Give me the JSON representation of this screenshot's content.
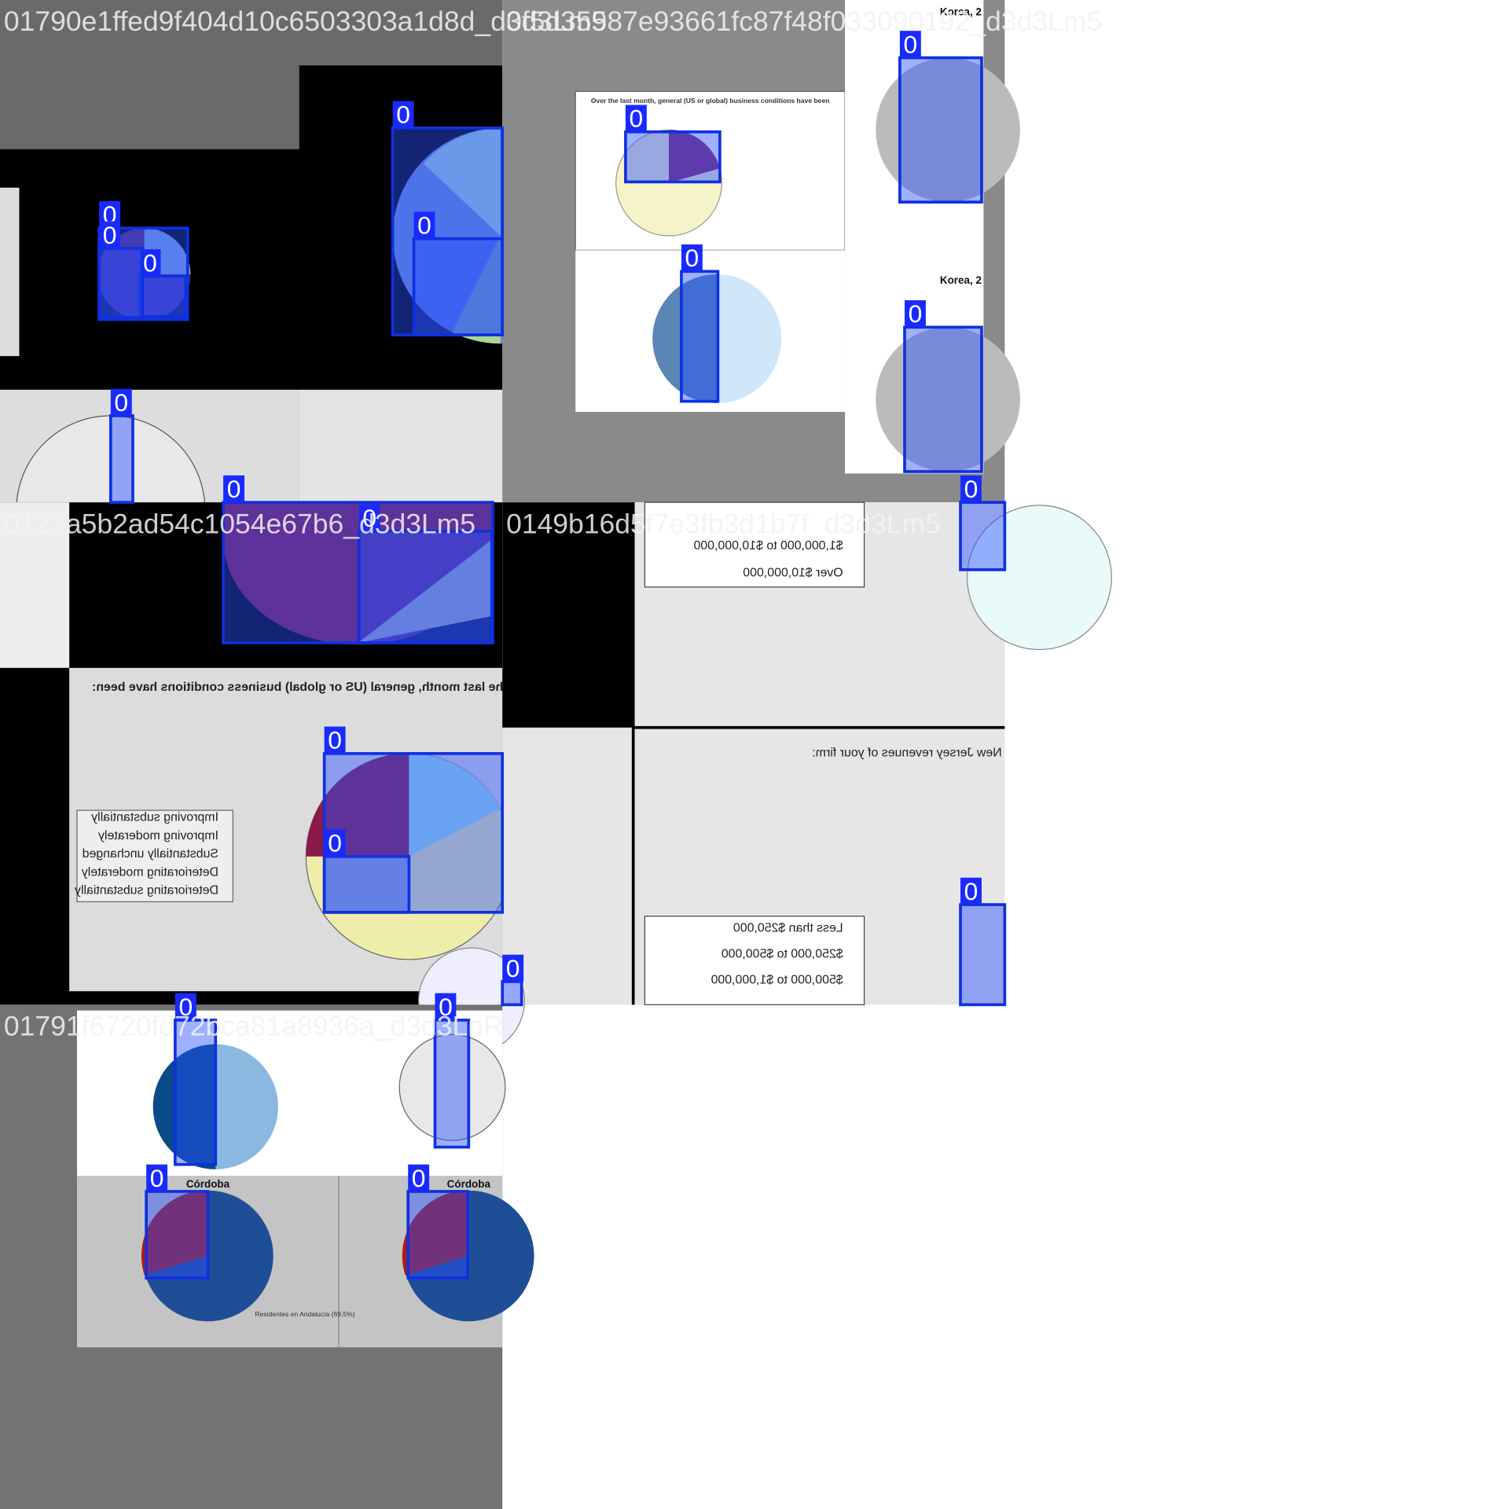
{
  "tiles": [
    {
      "filename": "01790e1ffed9f404d10c6503303a1d8d_d3d3Lm5",
      "boxes": [
        "0",
        "0",
        "0",
        "0",
        "0",
        "0"
      ]
    },
    {
      "filename": "0f5d35987e93661fc87f48f033090192_d3d3Lm5",
      "boxes": [
        "0",
        "0",
        "0",
        "0"
      ],
      "texts": [
        "Over the last month, general (US or global) business conditions have been",
        "Korea, 2",
        "Korea, 2"
      ]
    },
    {
      "filename": "0123a5b2ad54c1054e67b6_d3d3Lm5",
      "boxes": [
        "0",
        "0",
        "0",
        "0"
      ],
      "texts": [
        "Over the last month, general (US or global) business conditions have been:",
        "Improving substantially",
        "Improving moderately",
        "Substantially unchanged",
        "Deteriorating moderately",
        "Deteriorating substantially"
      ]
    },
    {
      "filename": "0149b16d5f7e3fb3d1b7f_d3d3Lm5",
      "boxes": [
        "0",
        "0",
        "0"
      ],
      "texts": [
        "New Jersey revenues of your firm:",
        "Less than $250,000",
        "$250,000 to $500,000",
        "$500,000 to $1,000,000",
        "$1,000,000 to $10,000,000",
        "Over $10,000,000"
      ]
    },
    {
      "filename": "01791f6720fd72bca81a8936a_d3d3LnR",
      "boxes": [
        "0",
        "0",
        "0",
        "0"
      ],
      "texts": [
        "Córdoba",
        "Córdoba",
        "Residentes en Andalucía (69,5%)"
      ]
    }
  ]
}
